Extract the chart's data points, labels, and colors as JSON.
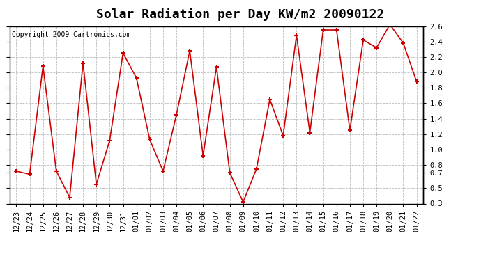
{
  "title": "Solar Radiation per Day KW/m2 20090122",
  "copyright": "Copyright 2009 Cartronics.com",
  "x_labels": [
    "12/23",
    "12/24",
    "12/25",
    "12/26",
    "12/27",
    "12/28",
    "12/29",
    "12/30",
    "12/31",
    "01/01",
    "01/02",
    "01/03",
    "01/04",
    "01/05",
    "01/06",
    "01/07",
    "01/08",
    "01/09",
    "01/10",
    "01/11",
    "01/12",
    "01/13",
    "01/14",
    "01/15",
    "01/16",
    "01/17",
    "01/18",
    "01/19",
    "01/20",
    "01/21",
    "01/22"
  ],
  "y_values": [
    0.72,
    0.68,
    2.08,
    0.72,
    0.38,
    2.12,
    0.55,
    1.12,
    2.25,
    1.93,
    1.13,
    0.72,
    1.45,
    2.28,
    0.92,
    2.07,
    0.7,
    0.32,
    0.75,
    1.65,
    1.18,
    2.48,
    1.22,
    2.55,
    2.55,
    1.25,
    2.42,
    2.32,
    2.62,
    2.38,
    1.88
  ],
  "line_color": "#cc0000",
  "marker_color": "#cc0000",
  "bg_color": "#ffffff",
  "plot_bg_color": "#ffffff",
  "grid_color": "#aaaaaa",
  "ylim": [
    0.3,
    2.6
  ],
  "yticks": [
    2.6,
    2.4,
    2.2,
    2.0,
    1.8,
    1.6,
    1.4,
    1.2,
    1.0,
    0.8,
    0.7,
    0.5,
    0.3
  ],
  "title_fontsize": 13,
  "tick_fontsize": 7.5,
  "copyright_fontsize": 7
}
